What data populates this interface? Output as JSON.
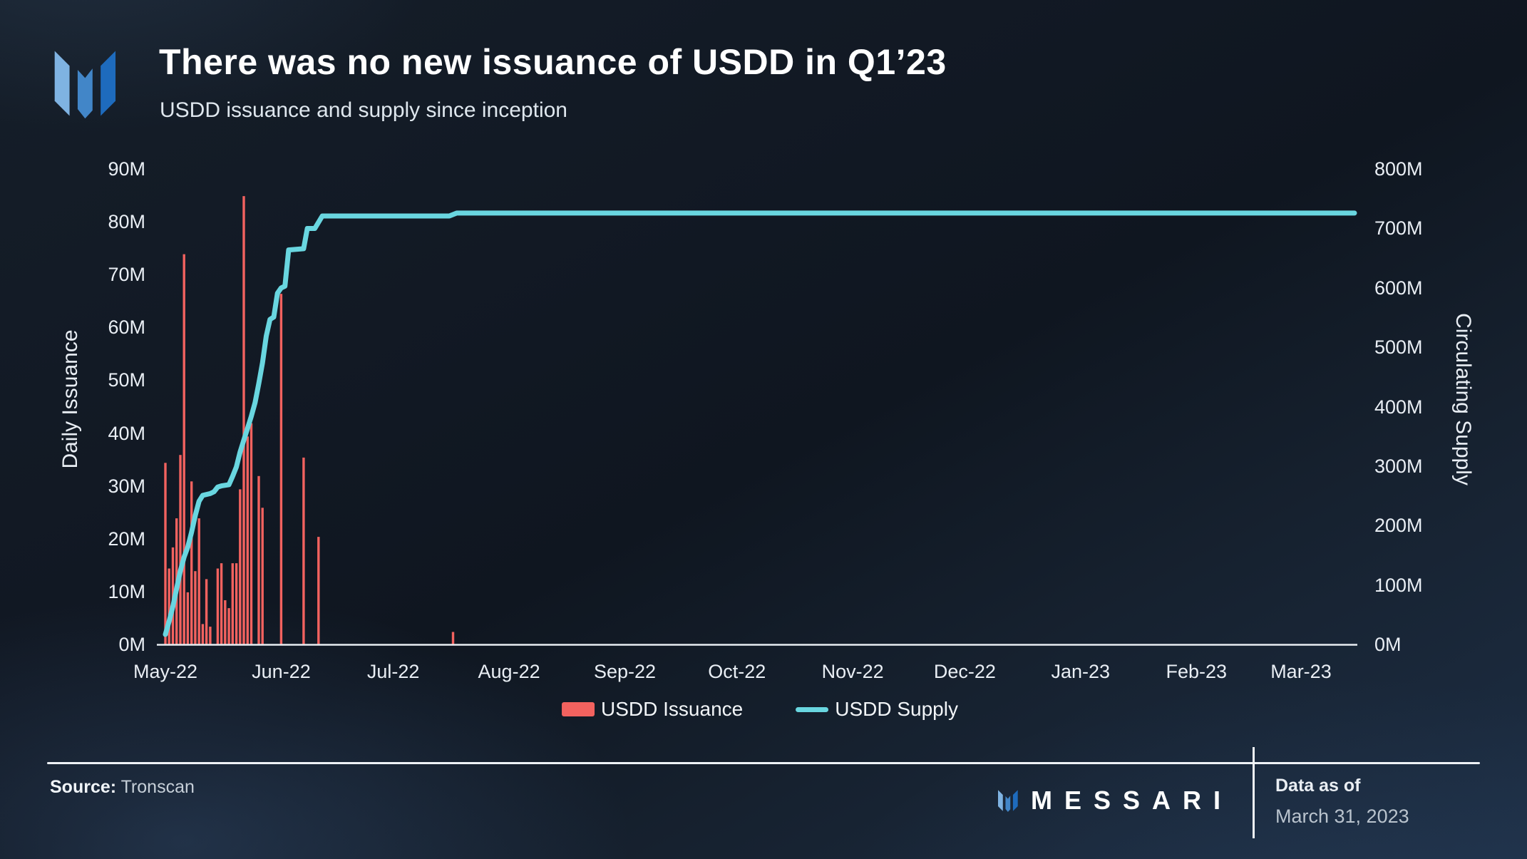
{
  "header": {
    "title": "There was no new issuance of USDD in Q1’23",
    "subtitle": "USDD issuance and supply since inception"
  },
  "chart_data": {
    "type": "bar+line combo",
    "title": "There was no new issuance of USDD in Q1’23",
    "subtitle": "USDD issuance and supply since inception",
    "left_axis": {
      "label": "Daily Issuance",
      "unit": "M",
      "min": 0,
      "max": 90,
      "ticks": [
        "0M",
        "10M",
        "20M",
        "30M",
        "40M",
        "50M",
        "60M",
        "70M",
        "80M",
        "90M"
      ]
    },
    "right_axis": {
      "label": "Circulating Supply",
      "unit": "M",
      "min": 0,
      "max": 800,
      "ticks": [
        "0M",
        "100M",
        "200M",
        "300M",
        "400M",
        "500M",
        "600M",
        "700M",
        "800M"
      ]
    },
    "x_axis": {
      "ticks": [
        "May-22",
        "Jun-22",
        "Jul-22",
        "Aug-22",
        "Sep-22",
        "Oct-22",
        "Nov-22",
        "Dec-22",
        "Jan-23",
        "Feb-23",
        "Mar-23"
      ],
      "tick_day_offsets": [
        0,
        31,
        61,
        92,
        123,
        153,
        184,
        214,
        245,
        276,
        304
      ]
    },
    "grid": false,
    "legend_position": "bottom-center",
    "series": [
      {
        "name": "USDD Issuance",
        "type": "bar",
        "axis": "left",
        "color": "#f2625f",
        "points": [
          {
            "date": "2022-05-01",
            "value": 34.5
          },
          {
            "date": "2022-05-02",
            "value": 14.5
          },
          {
            "date": "2022-05-03",
            "value": 18.5
          },
          {
            "date": "2022-05-04",
            "value": 24
          },
          {
            "date": "2022-05-05",
            "value": 36
          },
          {
            "date": "2022-05-06",
            "value": 74
          },
          {
            "date": "2022-05-07",
            "value": 10
          },
          {
            "date": "2022-05-08",
            "value": 31
          },
          {
            "date": "2022-05-09",
            "value": 14
          },
          {
            "date": "2022-05-10",
            "value": 24
          },
          {
            "date": "2022-05-11",
            "value": 4
          },
          {
            "date": "2022-05-12",
            "value": 12.5
          },
          {
            "date": "2022-05-13",
            "value": 3.5
          },
          {
            "date": "2022-05-15",
            "value": 14.5
          },
          {
            "date": "2022-05-16",
            "value": 15.5
          },
          {
            "date": "2022-05-17",
            "value": 8.5
          },
          {
            "date": "2022-05-18",
            "value": 7
          },
          {
            "date": "2022-05-19",
            "value": 15.5
          },
          {
            "date": "2022-05-20",
            "value": 15.5
          },
          {
            "date": "2022-05-21",
            "value": 29.5
          },
          {
            "date": "2022-05-22",
            "value": 85
          },
          {
            "date": "2022-05-23",
            "value": 39.5
          },
          {
            "date": "2022-05-24",
            "value": 42
          },
          {
            "date": "2022-05-26",
            "value": 32
          },
          {
            "date": "2022-05-27",
            "value": 26
          },
          {
            "date": "2022-06-01",
            "value": 66.5
          },
          {
            "date": "2022-06-07",
            "value": 35.5
          },
          {
            "date": "2022-06-11",
            "value": 20.5
          },
          {
            "date": "2022-07-17",
            "value": 2.5
          }
        ]
      },
      {
        "name": "USDD Supply",
        "type": "line",
        "axis": "right",
        "color": "#69d6e0",
        "points": [
          {
            "date": "2022-05-01",
            "value": 18
          },
          {
            "date": "2022-05-02",
            "value": 40
          },
          {
            "date": "2022-05-03",
            "value": 65
          },
          {
            "date": "2022-05-04",
            "value": 95
          },
          {
            "date": "2022-05-05",
            "value": 125
          },
          {
            "date": "2022-05-06",
            "value": 148
          },
          {
            "date": "2022-05-07",
            "value": 165
          },
          {
            "date": "2022-05-08",
            "value": 190
          },
          {
            "date": "2022-05-09",
            "value": 218
          },
          {
            "date": "2022-05-10",
            "value": 242
          },
          {
            "date": "2022-05-11",
            "value": 252
          },
          {
            "date": "2022-05-13",
            "value": 255
          },
          {
            "date": "2022-05-14",
            "value": 258
          },
          {
            "date": "2022-05-15",
            "value": 266
          },
          {
            "date": "2022-05-16",
            "value": 268
          },
          {
            "date": "2022-05-18",
            "value": 270
          },
          {
            "date": "2022-05-19",
            "value": 284
          },
          {
            "date": "2022-05-20",
            "value": 300
          },
          {
            "date": "2022-05-21",
            "value": 325
          },
          {
            "date": "2022-05-22",
            "value": 345
          },
          {
            "date": "2022-05-23",
            "value": 365
          },
          {
            "date": "2022-05-24",
            "value": 385
          },
          {
            "date": "2022-05-25",
            "value": 408
          },
          {
            "date": "2022-05-26",
            "value": 440
          },
          {
            "date": "2022-05-27",
            "value": 475
          },
          {
            "date": "2022-05-28",
            "value": 520
          },
          {
            "date": "2022-05-29",
            "value": 548
          },
          {
            "date": "2022-05-30",
            "value": 552
          },
          {
            "date": "2022-05-31",
            "value": 592
          },
          {
            "date": "2022-06-01",
            "value": 601
          },
          {
            "date": "2022-06-02",
            "value": 604
          },
          {
            "date": "2022-06-03",
            "value": 665
          },
          {
            "date": "2022-06-07",
            "value": 667
          },
          {
            "date": "2022-06-08",
            "value": 701
          },
          {
            "date": "2022-06-10",
            "value": 701
          },
          {
            "date": "2022-06-12",
            "value": 722
          },
          {
            "date": "2022-07-16",
            "value": 722
          },
          {
            "date": "2022-07-18",
            "value": 727
          },
          {
            "date": "2023-03-31",
            "value": 727
          }
        ]
      }
    ],
    "legend": [
      {
        "label": "USDD Issuance",
        "color": "#f2625f",
        "swatch": "bar"
      },
      {
        "label": "USDD Supply",
        "color": "#69d6e0",
        "swatch": "line"
      }
    ]
  },
  "footer": {
    "source_label": "Source:",
    "source_value": "Tronscan",
    "brand_wordmark": "MESSARI",
    "data_as_of_label": "Data as of",
    "data_as_of_value": "March 31, 2023"
  }
}
